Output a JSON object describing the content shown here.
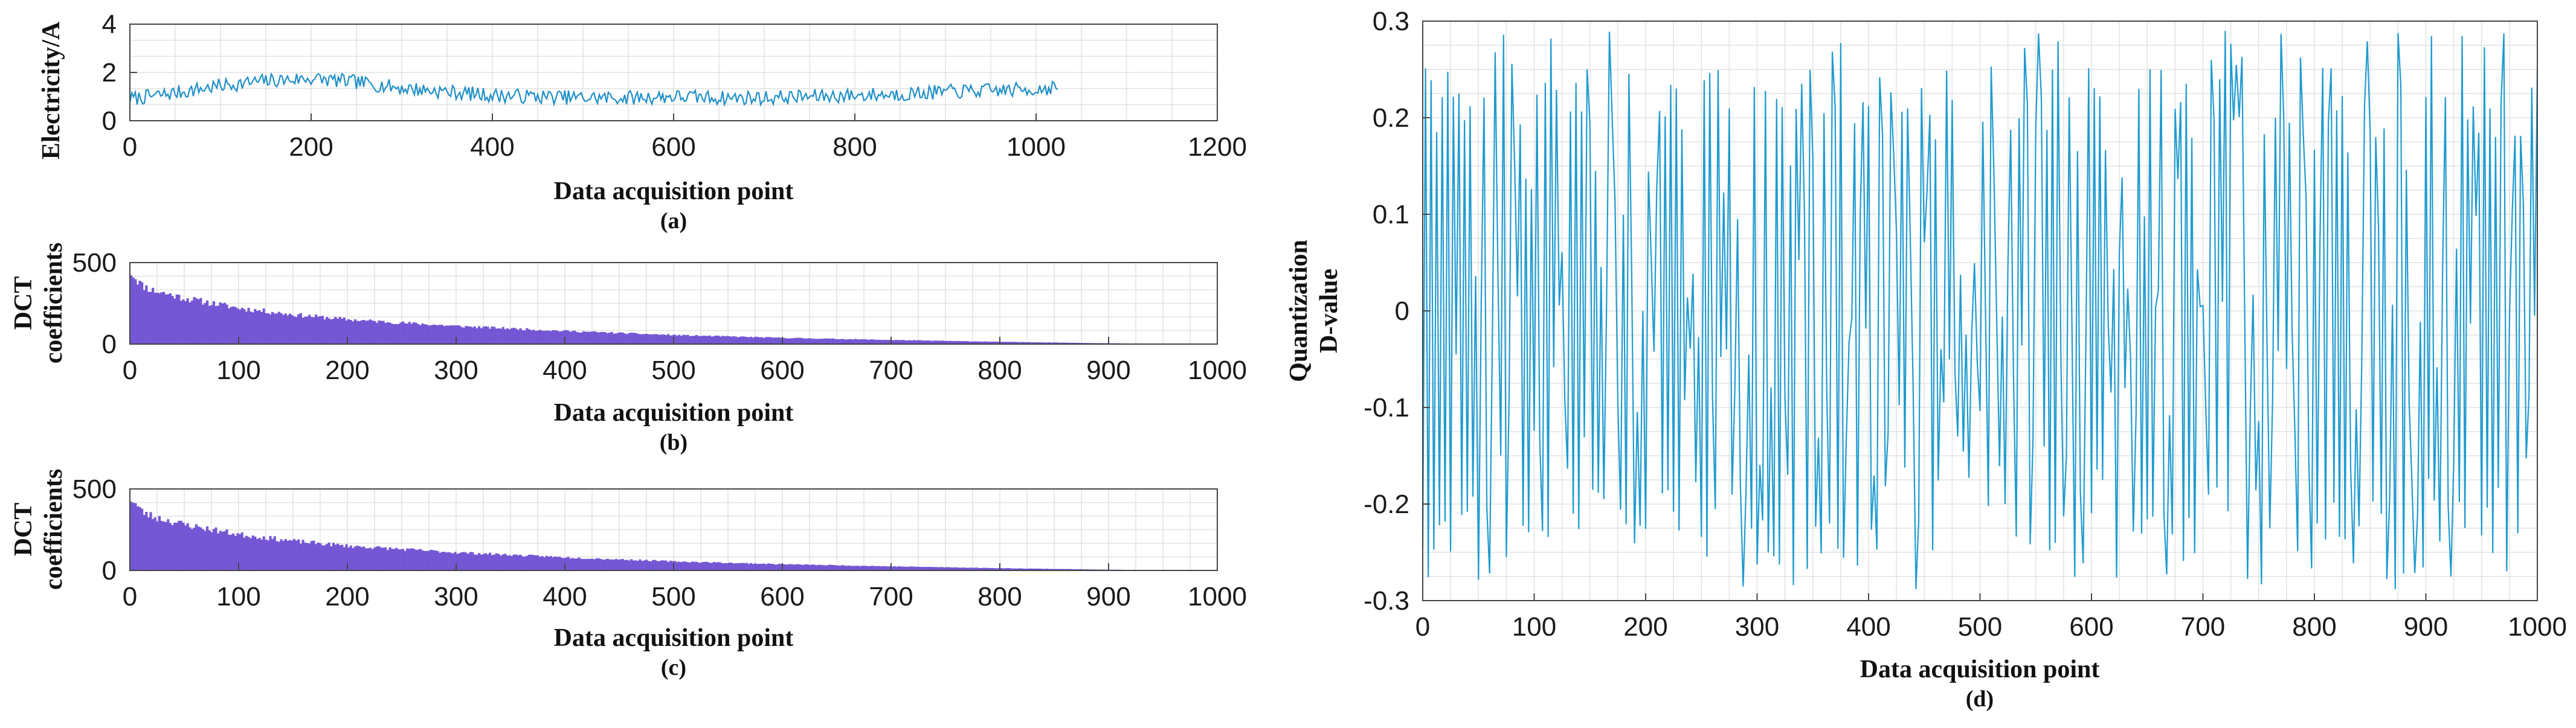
{
  "chart_data": [
    {
      "id": "a",
      "type": "line",
      "caption": "(a)",
      "xlabel": "Data acquisition point",
      "ylabel": "Electricity/A",
      "xlim": [
        0,
        1200
      ],
      "ylim": [
        0,
        4
      ],
      "xticks": [
        0,
        200,
        400,
        600,
        800,
        1000,
        1200
      ],
      "yticks": [
        0,
        2,
        4
      ],
      "grid": true,
      "color": "#1f8fc8",
      "series": [
        {
          "x": [
            0,
            50,
            100,
            150,
            200,
            250,
            300,
            350,
            400,
            450,
            500,
            550,
            600,
            650,
            700,
            750,
            800,
            850,
            900,
            950,
            1000,
            1024
          ],
          "y": [
            0.9,
            1.15,
            1.45,
            1.65,
            1.75,
            1.6,
            1.35,
            1.2,
            1.05,
            1.0,
            0.95,
            0.95,
            1.0,
            0.95,
            0.95,
            1.0,
            1.05,
            1.1,
            1.2,
            1.25,
            1.3,
            1.4
          ]
        }
      ],
      "noise_amplitude": 0.3
    },
    {
      "id": "b",
      "type": "bar",
      "caption": "(b)",
      "xlabel": "Data acquisition point",
      "ylabel": "DCT coefficients",
      "xlim": [
        0,
        1000
      ],
      "ylim": [
        0,
        500
      ],
      "xticks": [
        0,
        100,
        200,
        300,
        400,
        500,
        600,
        700,
        800,
        900,
        1000
      ],
      "yticks": [
        0,
        500
      ],
      "grid": true,
      "color": "#6a4bd1",
      "series": [
        {
          "x": [
            0,
            10,
            20,
            50,
            100,
            150,
            200,
            300,
            400,
            500,
            600,
            700,
            800,
            900,
            950,
            1000
          ],
          "y": [
            440,
            360,
            330,
            280,
            220,
            180,
            150,
            110,
            80,
            55,
            38,
            25,
            14,
            5,
            1,
            0
          ]
        }
      ]
    },
    {
      "id": "c",
      "type": "bar",
      "caption": "(c)",
      "xlabel": "Data acquisition point",
      "ylabel": "DCT coefficients",
      "xlim": [
        0,
        1000
      ],
      "ylim": [
        0,
        500
      ],
      "xticks": [
        0,
        100,
        200,
        300,
        400,
        500,
        600,
        700,
        800,
        900,
        1000
      ],
      "yticks": [
        0,
        500
      ],
      "grid": true,
      "color": "#6a4bd1",
      "series": [
        {
          "x": [
            0,
            10,
            20,
            50,
            100,
            150,
            200,
            300,
            400,
            500,
            600,
            700,
            800,
            900,
            950,
            1000
          ],
          "y": [
            440,
            360,
            330,
            280,
            220,
            180,
            150,
            110,
            80,
            55,
            38,
            25,
            14,
            5,
            1,
            0
          ]
        }
      ]
    },
    {
      "id": "d",
      "type": "line",
      "caption": "(d)",
      "xlabel": "Data acquisition point",
      "ylabel": "Quantization D-value",
      "ylabel_lines": [
        "Quantization",
        "D-value"
      ],
      "xlim": [
        0,
        1000
      ],
      "ylim": [
        -0.3,
        0.3
      ],
      "xticks": [
        0,
        100,
        200,
        300,
        400,
        500,
        600,
        700,
        800,
        900,
        1000
      ],
      "yticks": [
        -0.3,
        -0.2,
        -0.1,
        0,
        0.1,
        0.2,
        0.3
      ],
      "grid": true,
      "color": "#1f9bd0",
      "series": [
        {
          "x_start": 0,
          "x_end": 1000,
          "y_range": [
            -0.3,
            0.3
          ],
          "description_of_signal": ""
        }
      ]
    }
  ]
}
